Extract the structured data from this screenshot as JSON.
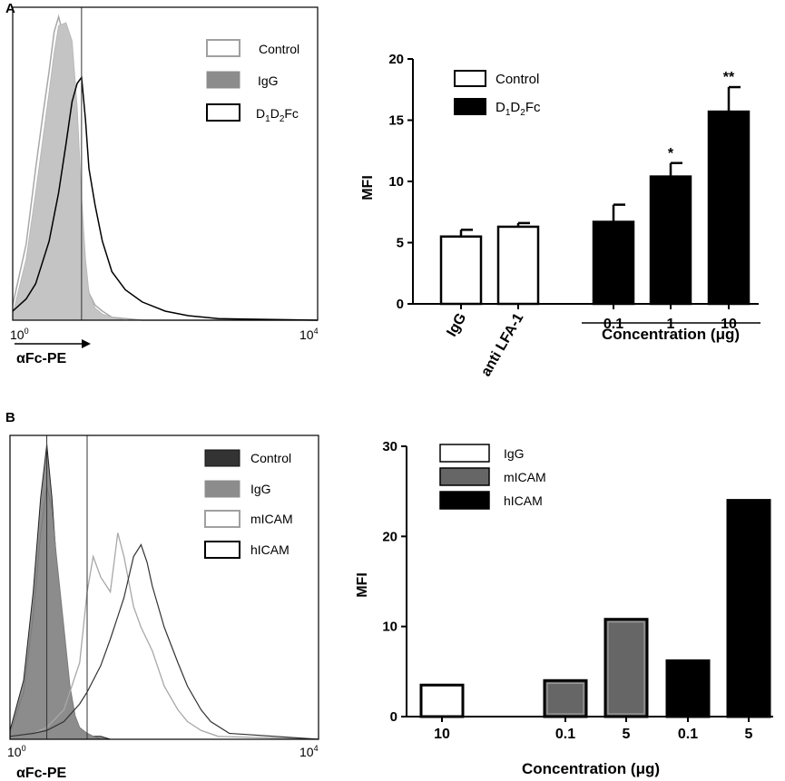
{
  "panel_a": {
    "label": "A",
    "histogram": {
      "x_min": "10",
      "x_min_exp": "0",
      "x_max": "10",
      "x_max_exp": "4",
      "xlabel": "αFc-PE",
      "legend": [
        "Control",
        "IgG",
        "D1D2Fc"
      ]
    },
    "bar_chart": {
      "legend": [
        "Control",
        "D1D2Fc"
      ]
    }
  },
  "panel_b": {
    "label": "B",
    "histogram": {
      "x_min": "10",
      "x_min_exp": "0",
      "x_max": "10",
      "x_max_exp": "4",
      "xlabel": "αFc-PE",
      "legend": [
        "Control",
        "IgG",
        "mICAM",
        "hICAM"
      ]
    },
    "bar_chart": {
      "legend": [
        "IgG",
        "mICAM",
        "hICAM"
      ]
    }
  },
  "chart_data": [
    {
      "type": "area",
      "panel": "A-histogram",
      "xlabel": "αFc-PE",
      "x_scale": "log",
      "xlim": [
        1,
        10000
      ],
      "marker_line_x": 8,
      "series": [
        {
          "name": "Control",
          "x": [
            1,
            1.5,
            2,
            2.5,
            3,
            3.5,
            4,
            5,
            6,
            7,
            8,
            9,
            10,
            12,
            15,
            20,
            30,
            50,
            100,
            10000
          ],
          "y": [
            0.05,
            0.25,
            0.5,
            0.68,
            0.82,
            0.95,
            1.0,
            0.9,
            0.62,
            0.4,
            0.25,
            0.15,
            0.09,
            0.05,
            0.03,
            0.01,
            0.005,
            0,
            0,
            0
          ]
        },
        {
          "name": "IgG",
          "x": [
            1,
            1.5,
            2,
            2.5,
            3,
            3.5,
            4,
            5,
            6,
            7,
            8,
            9,
            10,
            12,
            15,
            20,
            30,
            50,
            100,
            10000
          ],
          "y": [
            0.02,
            0.2,
            0.42,
            0.6,
            0.75,
            0.88,
            0.97,
            0.98,
            0.92,
            0.7,
            0.4,
            0.2,
            0.09,
            0.04,
            0.02,
            0.01,
            0,
            0,
            0,
            0
          ]
        },
        {
          "name": "D1D2Fc",
          "x": [
            1,
            1.5,
            2,
            3,
            4,
            5,
            6,
            7,
            8,
            9,
            10,
            12,
            15,
            20,
            30,
            50,
            100,
            200,
            500,
            10000
          ],
          "y": [
            0.03,
            0.07,
            0.12,
            0.26,
            0.42,
            0.58,
            0.72,
            0.78,
            0.8,
            0.66,
            0.5,
            0.38,
            0.26,
            0.16,
            0.1,
            0.06,
            0.03,
            0.015,
            0.005,
            0
          ]
        }
      ]
    },
    {
      "type": "bar",
      "panel": "A-bar",
      "categories": [
        "IgG",
        "anti LFA-1",
        "0.1",
        "1",
        "10"
      ],
      "series": [
        {
          "name": "Control",
          "values": [
            5.5,
            6.3,
            null,
            null,
            null
          ],
          "errors": [
            0.55,
            0.3,
            null,
            null,
            null
          ]
        },
        {
          "name": "D1D2Fc",
          "values": [
            null,
            null,
            6.7,
            10.4,
            15.7
          ],
          "errors": [
            null,
            null,
            1.4,
            1.1,
            2.0
          ]
        }
      ],
      "significance": [
        "",
        "",
        "",
        "*",
        "**"
      ],
      "ylabel": "MFI",
      "xlabel": "Concentration (μg)",
      "yticks": [
        0,
        5,
        10,
        15,
        20
      ],
      "ylim": [
        0,
        20
      ]
    },
    {
      "type": "area",
      "panel": "B-histogram",
      "xlabel": "αFc-PE",
      "x_scale": "log",
      "xlim": [
        1,
        10000
      ],
      "marker_lines_x": [
        3,
        10
      ],
      "series": [
        {
          "name": "Control",
          "x": [
            1,
            1.5,
            2,
            2.5,
            3,
            3.5,
            4,
            5,
            6,
            7,
            8,
            10,
            12,
            15,
            20,
            30,
            10000
          ],
          "y": [
            0.03,
            0.2,
            0.5,
            0.82,
            1.0,
            0.82,
            0.6,
            0.3,
            0.12,
            0.05,
            0.03,
            0.02,
            0.01,
            0.01,
            0,
            0,
            0
          ]
        },
        {
          "name": "IgG",
          "x": [
            1,
            1.5,
            2,
            2.5,
            3,
            3.5,
            4,
            5,
            6,
            7,
            8,
            10,
            12,
            15,
            20,
            30,
            10000
          ],
          "y": [
            0.02,
            0.16,
            0.42,
            0.7,
            0.86,
            0.78,
            0.62,
            0.38,
            0.18,
            0.08,
            0.04,
            0.02,
            0.01,
            0,
            0,
            0,
            0
          ]
        },
        {
          "name": "mICAM",
          "x": [
            1,
            2,
            3,
            5,
            8,
            10,
            12,
            15,
            20,
            25,
            30,
            40,
            50,
            70,
            100,
            150,
            200,
            300,
            500,
            10000
          ],
          "y": [
            0.01,
            0.02,
            0.04,
            0.1,
            0.26,
            0.5,
            0.62,
            0.55,
            0.5,
            0.7,
            0.62,
            0.45,
            0.38,
            0.3,
            0.18,
            0.1,
            0.06,
            0.03,
            0.01,
            0
          ]
        },
        {
          "name": "hICAM",
          "x": [
            1,
            2,
            3,
            5,
            8,
            10,
            15,
            20,
            30,
            40,
            50,
            60,
            70,
            100,
            150,
            200,
            300,
            400,
            700,
            10000
          ],
          "y": [
            0.01,
            0.02,
            0.03,
            0.06,
            0.12,
            0.16,
            0.25,
            0.34,
            0.48,
            0.62,
            0.66,
            0.6,
            0.52,
            0.38,
            0.26,
            0.18,
            0.1,
            0.06,
            0.02,
            0
          ]
        }
      ]
    },
    {
      "type": "bar",
      "panel": "B-bar",
      "categories": [
        "10",
        "0.1",
        "5",
        "0.1",
        "5"
      ],
      "series": [
        {
          "name": "IgG",
          "values": [
            3.5,
            null,
            null,
            null,
            null
          ]
        },
        {
          "name": "mICAM",
          "values": [
            null,
            4.0,
            10.8,
            null,
            null
          ]
        },
        {
          "name": "hICAM",
          "values": [
            null,
            null,
            null,
            6.2,
            24.0
          ]
        }
      ],
      "ylabel": "MFI",
      "xlabel": "Concentration (μg)",
      "yticks": [
        0,
        10,
        20,
        30
      ],
      "ylim": [
        0,
        30
      ]
    }
  ]
}
